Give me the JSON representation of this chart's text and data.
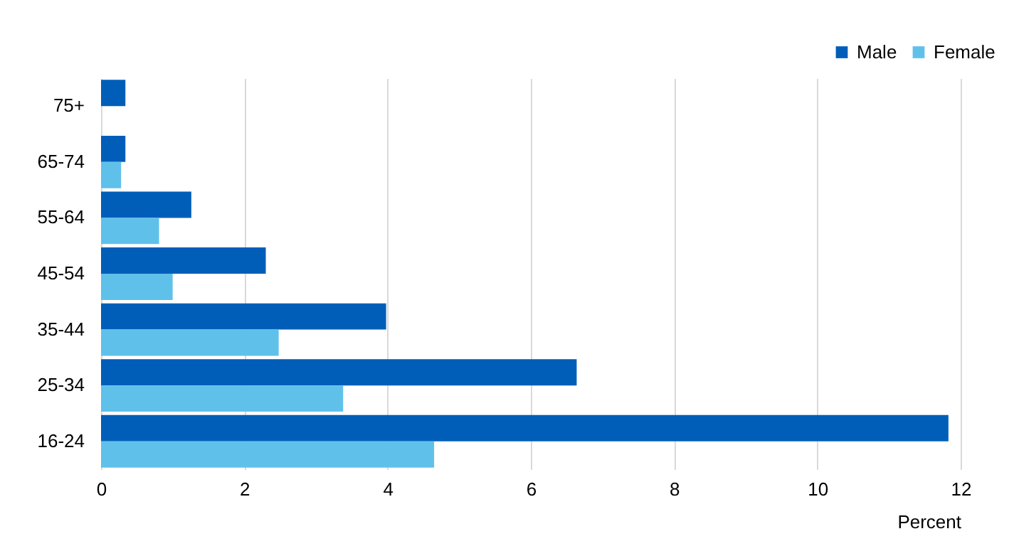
{
  "chart_data": {
    "type": "bar",
    "orientation": "horizontal",
    "xlabel": "Percent",
    "categories": [
      "75+",
      "65-74",
      "55-64",
      "45-54",
      "35-44",
      "25-34",
      "16-24"
    ],
    "series": [
      {
        "name": "Male",
        "color": "#005eb8",
        "values": [
          0.34,
          0.34,
          1.26,
          2.3,
          3.98,
          6.64,
          11.83
        ]
      },
      {
        "name": "Female",
        "color": "#5fc1ea",
        "values": [
          null,
          0.28,
          0.81,
          1.0,
          2.48,
          3.38,
          4.65
        ]
      }
    ],
    "xlim": [
      0,
      12
    ],
    "xticks": [
      0,
      2,
      4,
      6,
      8,
      10,
      12
    ],
    "grid": "x",
    "legend": "top right"
  }
}
